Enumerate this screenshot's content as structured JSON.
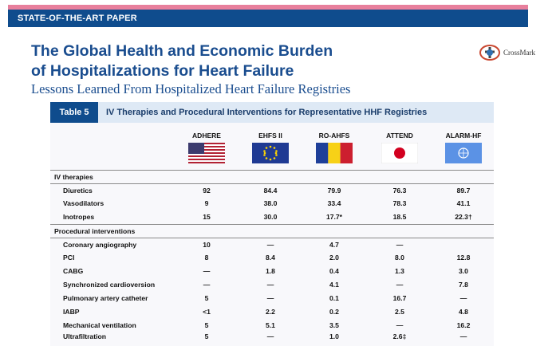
{
  "banner": "STATE-OF-THE-ART PAPER",
  "title_line1": "The Global Health and Economic Burden",
  "title_line2": "of Hospitalizations for Heart Failure",
  "subtitle": "Lessons Learned From Hospitalized Heart Failure Registries",
  "crossmark": "CrossMark",
  "table": {
    "label": "Table 5",
    "title": "IV Therapies and Procedural Interventions for Representative HHF Registries",
    "columns": [
      "ADHERE",
      "EHFS II",
      "RO-AHFS",
      "ATTEND",
      "ALARM-HF"
    ],
    "flags": [
      "us-flag",
      "eu-flag",
      "romania-flag",
      "japan-flag",
      "un-flag"
    ],
    "sections": [
      {
        "name": "IV therapies",
        "rows": [
          {
            "label": "Diuretics",
            "values": [
              "92",
              "84.4",
              "79.9",
              "76.3",
              "89.7"
            ]
          },
          {
            "label": "Vasodilators",
            "values": [
              "9",
              "38.0",
              "33.4",
              "78.3",
              "41.1"
            ]
          },
          {
            "label": "Inotropes",
            "values": [
              "15",
              "30.0",
              "17.7*",
              "18.5",
              "22.3†"
            ]
          }
        ]
      },
      {
        "name": "Procedural interventions",
        "rows": [
          {
            "label": "Coronary angiography",
            "values": [
              "10",
              "—",
              "4.7",
              "—",
              ""
            ]
          },
          {
            "label": "PCI",
            "values": [
              "8",
              "8.4",
              "2.0",
              "8.0",
              "12.8"
            ]
          },
          {
            "label": "CABG",
            "values": [
              "—",
              "1.8",
              "0.4",
              "1.3",
              "3.0"
            ]
          },
          {
            "label": "Synchronized cardioversion",
            "values": [
              "—",
              "—",
              "4.1",
              "—",
              "7.8"
            ]
          },
          {
            "label": "Pulmonary artery catheter",
            "values": [
              "5",
              "—",
              "0.1",
              "16.7",
              "—"
            ]
          },
          {
            "label": "IABP",
            "values": [
              "<1",
              "2.2",
              "0.2",
              "2.5",
              "4.8"
            ]
          },
          {
            "label": "Mechanical ventilation",
            "values": [
              "5",
              "5.1",
              "3.5",
              "—",
              "16.2"
            ]
          },
          {
            "label": "Ultrafiltration",
            "values": [
              "5",
              "—",
              "1.0",
              "2.6‡",
              "—"
            ]
          }
        ]
      }
    ]
  }
}
